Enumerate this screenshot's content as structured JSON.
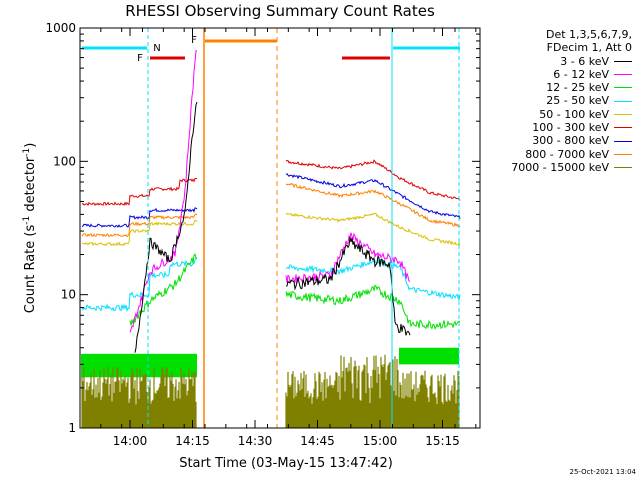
{
  "chart_data": {
    "type": "line",
    "title": "RHESSI Observing Summary Count Rates",
    "xlabel": "Start Time (03-May-15 13:47:42)",
    "ylabel": "Count Rate (s",
    "ylabel_sup1": "-1",
    "ylabel_mid": " detector",
    "ylabel_sup2": "-1",
    "ylabel_end": ")",
    "yscale": "log",
    "ylim": [
      1,
      1000
    ],
    "xlim_minutes": [
      13.8,
      15.4
    ],
    "x_ticks": [
      "14:00",
      "14:15",
      "14:30",
      "14:45",
      "15:00",
      "15:15"
    ],
    "y_ticks": [
      "1",
      "10",
      "100",
      "1000"
    ],
    "legend_header": [
      "Det 1,3,5,6,7,9,",
      "FDecim 1, Att 0"
    ],
    "series": [
      {
        "name": "3 - 6 keV",
        "color": "#000000"
      },
      {
        "name": "6 - 12 keV",
        "color": "#ff00ff"
      },
      {
        "name": "12 - 25 keV",
        "color": "#00e000"
      },
      {
        "name": "25 - 50 keV",
        "color": "#00e0ff"
      },
      {
        "name": "50 - 100 keV",
        "color": "#d8c000"
      },
      {
        "name": "100 - 300 keV",
        "color": "#e00000"
      },
      {
        "name": "300 - 800 keV",
        "color": "#0000e0"
      },
      {
        "name": "800 - 7000 keV",
        "color": "#ff8000"
      },
      {
        "name": "7000 - 15000 keV",
        "color": "#808000"
      }
    ],
    "annotations": {
      "F_labels": [
        "F",
        "F"
      ],
      "N_label": "N"
    },
    "timestamp": "25-Oct-2021 13:04"
  }
}
